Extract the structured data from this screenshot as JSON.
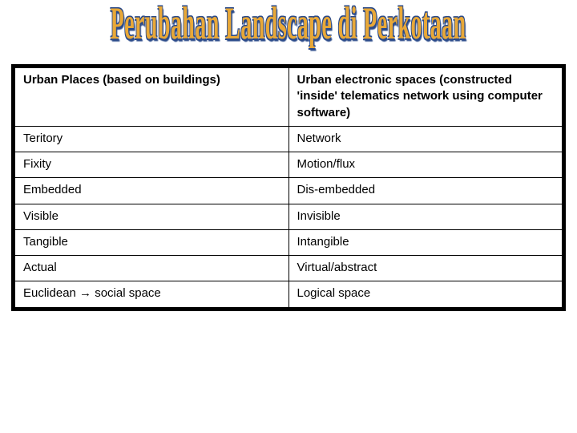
{
  "title": "Perubahan Landscape di Perkotaan",
  "table": {
    "border_color": "#000000",
    "background_color": "#ffffff",
    "outer_border_width": 5,
    "inner_border_width": 1,
    "font_size": 15,
    "columns": [
      {
        "key": "left",
        "width_pct": 50
      },
      {
        "key": "right",
        "width_pct": 50
      }
    ],
    "header": {
      "left": "Urban Places (based on buildings)",
      "right": "Urban electronic spaces (constructed 'inside' telematics network using computer software)"
    },
    "rows": [
      {
        "left": "Teritory",
        "right": "Network"
      },
      {
        "left": "Fixity",
        "right": "Motion/flux"
      },
      {
        "left": "Embedded",
        "right": "Dis-embedded"
      },
      {
        "left": "Visible",
        "right": "Invisible"
      },
      {
        "left": "Tangible",
        "right": "Intangible"
      },
      {
        "left": "Actual",
        "right": "Virtual/abstract"
      },
      {
        "left": "Euclidean → social space",
        "right": "Logical space"
      }
    ]
  },
  "title_style": {
    "fill_color": "#e8a838",
    "outline_color": "#2a4a8a",
    "font_family": "Georgia",
    "font_size": 36,
    "scale_y": 1.6,
    "scale_x": 0.78
  }
}
